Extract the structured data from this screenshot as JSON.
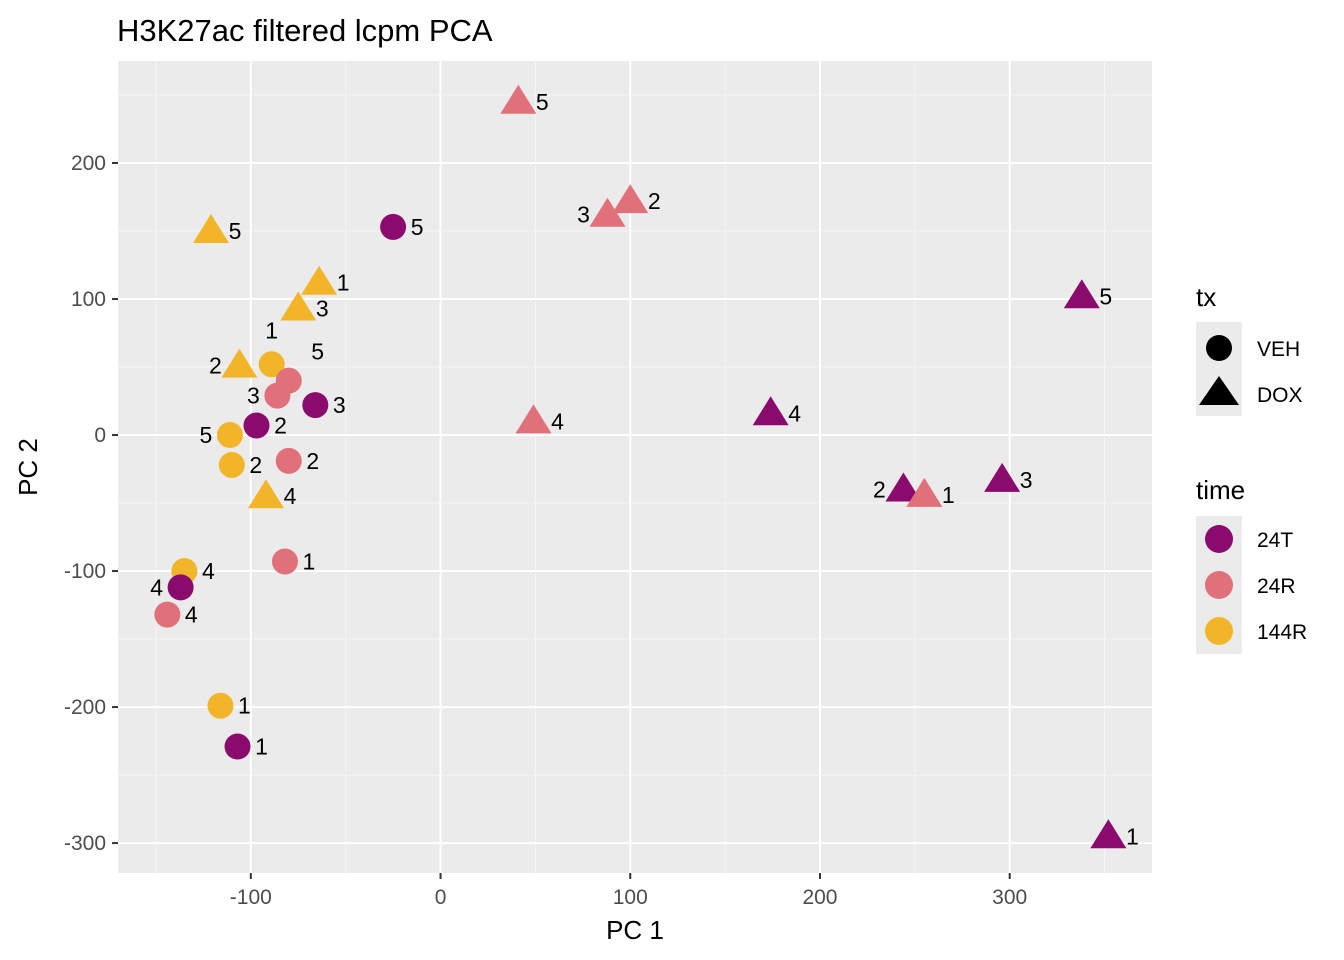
{
  "chart_data": {
    "type": "scatter",
    "title": "H3K27ac filtered lcpm PCA",
    "xlabel": "PC 1",
    "ylabel": "PC 2",
    "xlim": [
      -170,
      375
    ],
    "ylim": [
      -322,
      275
    ],
    "x_ticks": [
      -100,
      0,
      100,
      200,
      300
    ],
    "y_ticks": [
      -300,
      -200,
      -100,
      0,
      100,
      200
    ],
    "x_tick_labels": [
      "-100",
      "0",
      "100",
      "200",
      "300"
    ],
    "y_tick_labels": [
      "-300",
      "-200",
      "-100",
      "0",
      "100",
      "200"
    ],
    "x_minor": [
      -150,
      -50,
      50,
      150,
      250,
      350
    ],
    "y_minor": [
      -250,
      -150,
      -50,
      50,
      150,
      250
    ],
    "grid": true,
    "legend_position": "right",
    "colors": {
      "panel_bg": "#EBEBEB",
      "grid_major": "#FFFFFF",
      "grid_minor": "#F5F5F5",
      "text": "#000000",
      "tick_text": "#4D4D4D",
      "tick_mark": "#333333",
      "legend_key_bg": "#EBEBEB"
    },
    "legends": {
      "tx": {
        "title": "tx",
        "items": [
          {
            "label": "VEH",
            "shape": "circle"
          },
          {
            "label": "DOX",
            "shape": "triangle"
          }
        ]
      },
      "time": {
        "title": "time",
        "items": [
          {
            "label": "24T",
            "color": "#8B0A6E"
          },
          {
            "label": "24R",
            "color": "#E0707A"
          },
          {
            "label": "144R",
            "color": "#F2B52A"
          }
        ]
      }
    },
    "points": [
      {
        "x": 41,
        "y": 245,
        "time": "24R",
        "tx": "DOX",
        "label": "5"
      },
      {
        "x": 100,
        "y": 172,
        "time": "24R",
        "tx": "DOX",
        "label": "2"
      },
      {
        "x": 88,
        "y": 162,
        "time": "24R",
        "tx": "DOX",
        "label": "3"
      },
      {
        "x": -25,
        "y": 153,
        "time": "24T",
        "tx": "VEH",
        "label": "5"
      },
      {
        "x": -121,
        "y": 150,
        "time": "144R",
        "tx": "DOX",
        "label": "5"
      },
      {
        "x": -64,
        "y": 112,
        "time": "144R",
        "tx": "DOX",
        "label": "1"
      },
      {
        "x": -75,
        "y": 93,
        "time": "144R",
        "tx": "DOX",
        "label": "3"
      },
      {
        "x": 338,
        "y": 102,
        "time": "24T",
        "tx": "DOX",
        "label": "5"
      },
      {
        "x": -106,
        "y": 51,
        "time": "144R",
        "tx": "DOX",
        "label": "2"
      },
      {
        "x": -89,
        "y": 52,
        "time": "144R",
        "tx": "VEH",
        "label": "1"
      },
      {
        "x": -80,
        "y": 40,
        "time": "24R",
        "tx": "VEH",
        "label": "5"
      },
      {
        "x": -86,
        "y": 29,
        "time": "24R",
        "tx": "VEH",
        "label": "3"
      },
      {
        "x": -66,
        "y": 22,
        "time": "24T",
        "tx": "VEH",
        "label": "3"
      },
      {
        "x": -97,
        "y": 7,
        "time": "24T",
        "tx": "VEH",
        "label": "2"
      },
      {
        "x": -111,
        "y": 0,
        "time": "144R",
        "tx": "VEH",
        "label": "5"
      },
      {
        "x": -110,
        "y": -22,
        "time": "144R",
        "tx": "VEH",
        "label": "2"
      },
      {
        "x": -80,
        "y": -19,
        "time": "24R",
        "tx": "VEH",
        "label": "2"
      },
      {
        "x": 49,
        "y": 10,
        "time": "24R",
        "tx": "DOX",
        "label": "4"
      },
      {
        "x": 174,
        "y": 16,
        "time": "24T",
        "tx": "DOX",
        "label": "4"
      },
      {
        "x": -92,
        "y": -45,
        "time": "144R",
        "tx": "DOX",
        "label": "4"
      },
      {
        "x": 244,
        "y": -40,
        "time": "24T",
        "tx": "DOX",
        "label": "2"
      },
      {
        "x": 255,
        "y": -44,
        "time": "24R",
        "tx": "DOX",
        "label": "1"
      },
      {
        "x": 296,
        "y": -33,
        "time": "24T",
        "tx": "DOX",
        "label": "3"
      },
      {
        "x": -82,
        "y": -93,
        "time": "24R",
        "tx": "VEH",
        "label": "1"
      },
      {
        "x": -135,
        "y": -100,
        "time": "144R",
        "tx": "VEH",
        "label": "4"
      },
      {
        "x": -137,
        "y": -112,
        "time": "24T",
        "tx": "VEH",
        "label": "4"
      },
      {
        "x": -144,
        "y": -132,
        "time": "24R",
        "tx": "VEH",
        "label": "4"
      },
      {
        "x": -116,
        "y": -199,
        "time": "144R",
        "tx": "VEH",
        "label": "1"
      },
      {
        "x": -107,
        "y": -229,
        "time": "24T",
        "tx": "VEH",
        "label": "1"
      },
      {
        "x": 352,
        "y": -295,
        "time": "24T",
        "tx": "DOX",
        "label": "1"
      }
    ]
  }
}
